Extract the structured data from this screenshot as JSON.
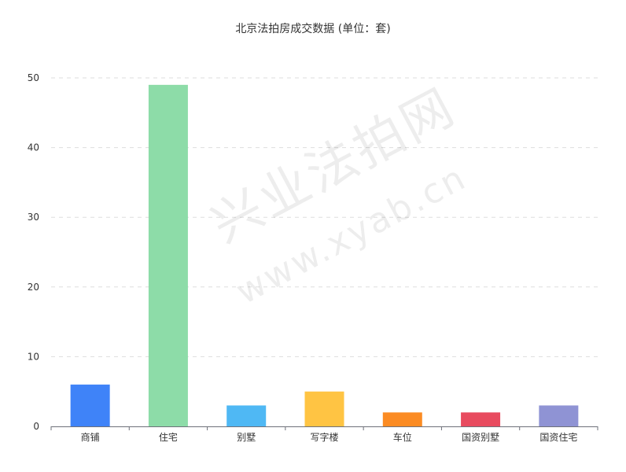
{
  "chart_data": {
    "type": "bar",
    "title": "北京法拍房成交数据 (单位：套)",
    "categories": [
      "商铺",
      "住宅",
      "别墅",
      "写字楼",
      "车位",
      "国资别墅",
      "国资住宅"
    ],
    "values": [
      6,
      49,
      3,
      5,
      2,
      2,
      3
    ],
    "colors": [
      "#3f83f8",
      "#8ddca8",
      "#4fb8f4",
      "#ffc443",
      "#fb8b23",
      "#e84b5f",
      "#8f93d4"
    ],
    "yticks": [
      "0",
      "10",
      "20",
      "30",
      "40",
      "50"
    ],
    "ylim": [
      0,
      50
    ],
    "grid": true,
    "legend": "none"
  },
  "watermark": {
    "line1": "兴业法拍网",
    "line2": "www.xyab.cn"
  }
}
